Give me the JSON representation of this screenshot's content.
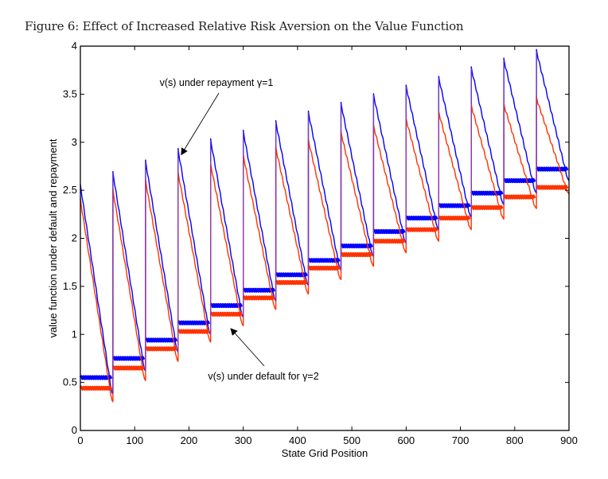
{
  "figure_caption": "Figure 6: Effect of Increased Relative Risk Aversion on the Value Function",
  "chart_data": {
    "type": "line",
    "title": "",
    "xlabel": "State Grid Position",
    "ylabel": "value function under default and repayment",
    "xlim": [
      0,
      900
    ],
    "ylim": [
      0,
      4
    ],
    "xticks": [
      0,
      100,
      200,
      300,
      400,
      500,
      600,
      700,
      800,
      900
    ],
    "yticks": [
      0,
      0.5,
      1,
      1.5,
      2,
      2.5,
      3,
      3.5,
      4
    ],
    "xtick_labels": [
      "0",
      "100",
      "200",
      "300",
      "400",
      "500",
      "600",
      "700",
      "800",
      "900"
    ],
    "ytick_labels": [
      "0",
      "0.5",
      "1",
      "1.5",
      "2",
      "2.5",
      "3",
      "3.5",
      "4"
    ],
    "grid": false,
    "segment_length": 60,
    "segment_starts": [
      0,
      60,
      120,
      180,
      240,
      300,
      360,
      420,
      480,
      540,
      600,
      660,
      720,
      780,
      840
    ],
    "series": [
      {
        "name": "v(s) under repayment γ=1",
        "color": "#0000ff",
        "segment_peaks": [
          2.55,
          2.68,
          2.8,
          2.92,
          3.02,
          3.11,
          3.21,
          3.31,
          3.4,
          3.49,
          3.58,
          3.67,
          3.77,
          3.86,
          3.95
        ],
        "segment_floors": [
          0.55,
          0.75,
          0.94,
          1.12,
          1.3,
          1.46,
          1.62,
          1.77,
          1.92,
          2.07,
          2.21,
          2.34,
          2.47,
          2.6,
          2.72
        ],
        "segment_minima": [
          0.38,
          0.62,
          0.82,
          1.0,
          1.18,
          1.35,
          1.51,
          1.67,
          1.81,
          1.95,
          2.09,
          2.22,
          2.35,
          2.47,
          2.6
        ]
      },
      {
        "name": "v(s) under default for γ=2",
        "color": "#ff3300",
        "segment_peaks": [
          2.4,
          2.5,
          2.6,
          2.68,
          2.77,
          2.86,
          2.94,
          3.02,
          3.1,
          3.17,
          3.24,
          3.31,
          3.38,
          3.39,
          3.46
        ],
        "segment_floors": [
          0.44,
          0.65,
          0.85,
          1.03,
          1.21,
          1.38,
          1.54,
          1.69,
          1.83,
          1.97,
          2.09,
          2.21,
          2.32,
          2.43,
          2.53
        ],
        "segment_minima": [
          0.3,
          0.52,
          0.72,
          0.92,
          1.09,
          1.26,
          1.42,
          1.57,
          1.71,
          1.85,
          1.97,
          2.09,
          2.2,
          2.31,
          2.46
        ]
      }
    ],
    "annotations": [
      {
        "text": "v(s) under repayment γ=1",
        "points_to": {
          "x": 180,
          "y": 2.92
        },
        "anchor": "top"
      },
      {
        "text": "v(s) under default for γ=2",
        "points_to": {
          "x": 260,
          "y": 1.05
        },
        "anchor": "below"
      }
    ]
  }
}
